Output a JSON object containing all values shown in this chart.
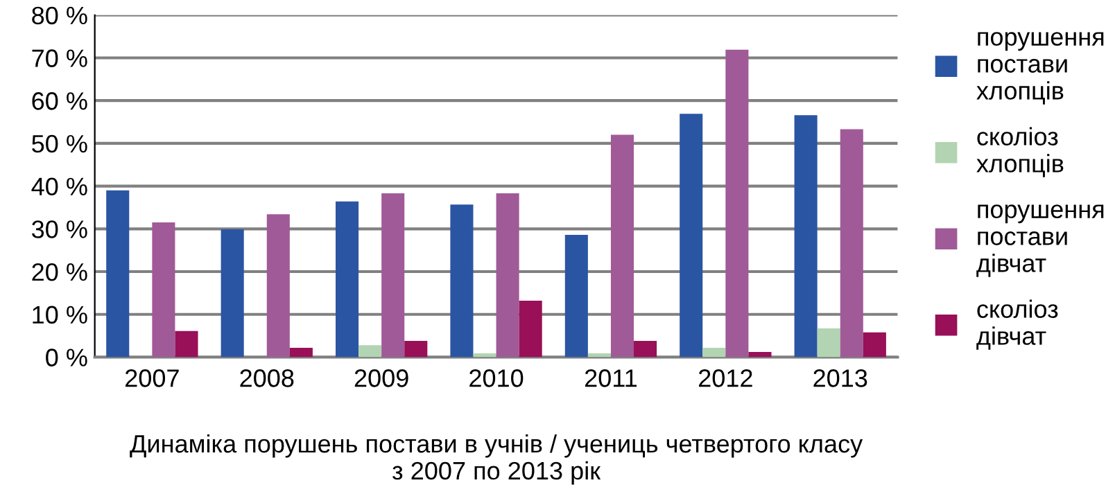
{
  "chart_data": {
    "type": "bar",
    "xlabel": "Динаміка порушень постави в учнів / учениць четвертого класу\nз 2007 по 2013 рік",
    "categories": [
      "2007",
      "2008",
      "2009",
      "2010",
      "2011",
      "2012",
      "2013"
    ],
    "series": [
      {
        "name": "порушення\nпостави\nхлопців",
        "color": "#2a55a3",
        "values": [
          39.0,
          29.9,
          36.4,
          35.7,
          28.6,
          56.9,
          56.6
        ]
      },
      {
        "name": "сколіоз\nхлопців",
        "color": "#b2d4b2",
        "values": [
          0,
          0,
          2.8,
          0.9,
          0.9,
          2.2,
          6.7
        ]
      },
      {
        "name": "порушення\nпостави\nдівчат",
        "color": "#a05a98",
        "values": [
          31.5,
          33.4,
          38.3,
          38.3,
          52.0,
          71.9,
          53.3
        ]
      },
      {
        "name": "сколіоз\nдівчат",
        "color": "#990f58",
        "values": [
          6.1,
          2.2,
          3.8,
          13.2,
          3.8,
          1.2,
          5.8
        ]
      }
    ],
    "ylim": [
      0,
      80
    ],
    "yticks": [
      {
        "value": 0,
        "label": "0 %"
      },
      {
        "value": 10,
        "label": "10 %"
      },
      {
        "value": 20,
        "label": "20 %"
      },
      {
        "value": 30,
        "label": "30 %"
      },
      {
        "value": 40,
        "label": "40 %"
      },
      {
        "value": 50,
        "label": "50 %"
      },
      {
        "value": 60,
        "label": "60 %"
      },
      {
        "value": 70,
        "label": "70 %"
      },
      {
        "value": 80,
        "label": "80 %"
      }
    ],
    "grid": "y",
    "legend": "right"
  }
}
